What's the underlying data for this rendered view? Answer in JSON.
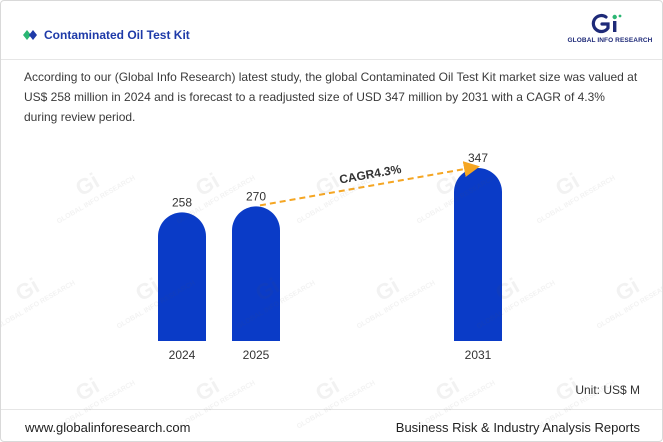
{
  "header": {
    "title": "Contaminated Oil Test Kit",
    "logo_text": "GLOBAL INFO RESEARCH"
  },
  "description": "According to our (Global Info Research) latest study, the global Contaminated Oil Test Kit market size was valued at US$ 258 million in 2024 and is forecast to a readjusted size of USD 347 million by 2031 with a CAGR of 4.3% during review period.",
  "chart_data": {
    "type": "bar",
    "categories": [
      "2024",
      "2025",
      "2031"
    ],
    "values": [
      258,
      270,
      347
    ],
    "annotation": "CAGR4.3%",
    "unit": "Unit: US$ M",
    "bar_color": "#0a3bc7",
    "arrow_color": "#f5a623"
  },
  "footer": {
    "website": "www.globalinforesearch.com",
    "tagline": "Business Risk & Industry Analysis Reports"
  },
  "colors": {
    "accent": "#1e3aa8",
    "logo_green": "#2bb673"
  }
}
